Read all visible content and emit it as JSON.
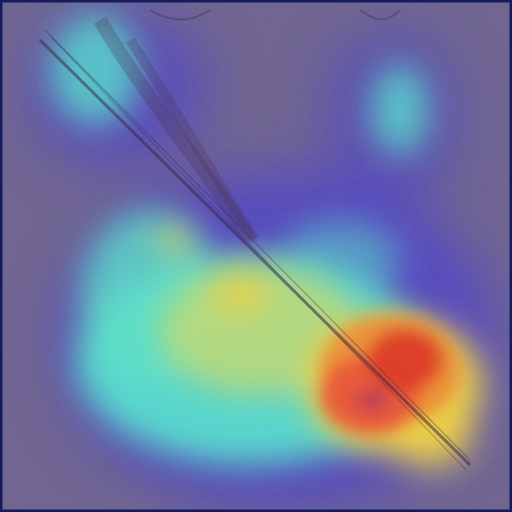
{
  "image": {
    "kind": "attention-heatmap-overlay",
    "colormap": "jet",
    "colors": {
      "background": "#6a5f8e",
      "frame": "#161b5c",
      "low": "#3b2fb8",
      "cyan": "#4fe0d0",
      "yellow": "#f2d33a",
      "orange": "#f08a2a",
      "red": "#e0301e",
      "stroke": "#2b1a3a"
    }
  }
}
